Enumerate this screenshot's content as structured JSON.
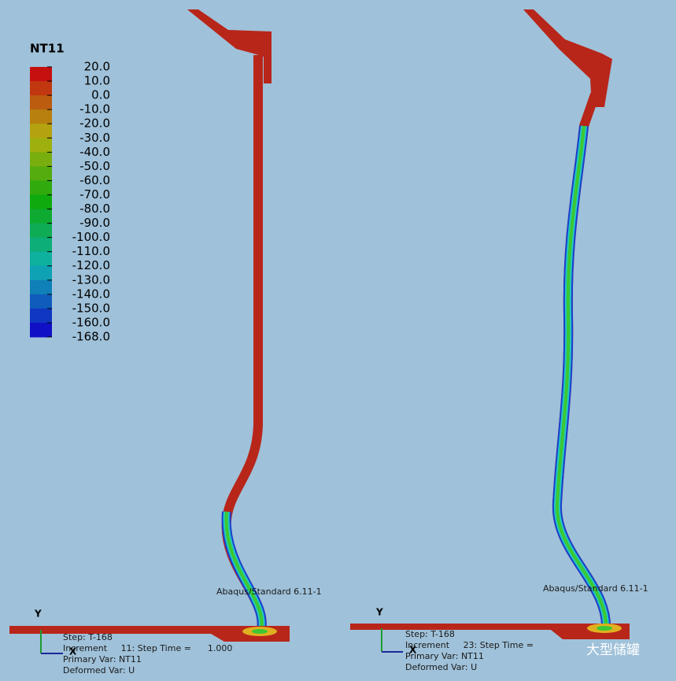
{
  "legend": {
    "title": "NT11",
    "labels": [
      "20.0",
      "10.0",
      "0.0",
      "-10.0",
      "-20.0",
      "-30.0",
      "-40.0",
      "-50.0",
      "-60.0",
      "-70.0",
      "-80.0",
      "-90.0",
      "-100.0",
      "-110.0",
      "-120.0",
      "-130.0",
      "-140.0",
      "-150.0",
      "-160.0",
      "-168.0"
    ]
  },
  "panels": [
    {
      "version": "Abaqus/Standard 6.11-1",
      "axis_y": "Y",
      "axis_x": "X",
      "info": [
        "Step: T-168",
        "Increment     11: Step Time =      1.000",
        "Primary Var: NT11",
        "Deformed Var: U"
      ]
    },
    {
      "version": "Abaqus/Standard 6.11-1",
      "axis_y": "Y",
      "axis_x": "X",
      "info": [
        "Step: T-168",
        "Increment     23: Step Time =",
        "Primary Var: NT11",
        "Deformed Var: U"
      ]
    }
  ],
  "watermark": "大型储罐"
}
